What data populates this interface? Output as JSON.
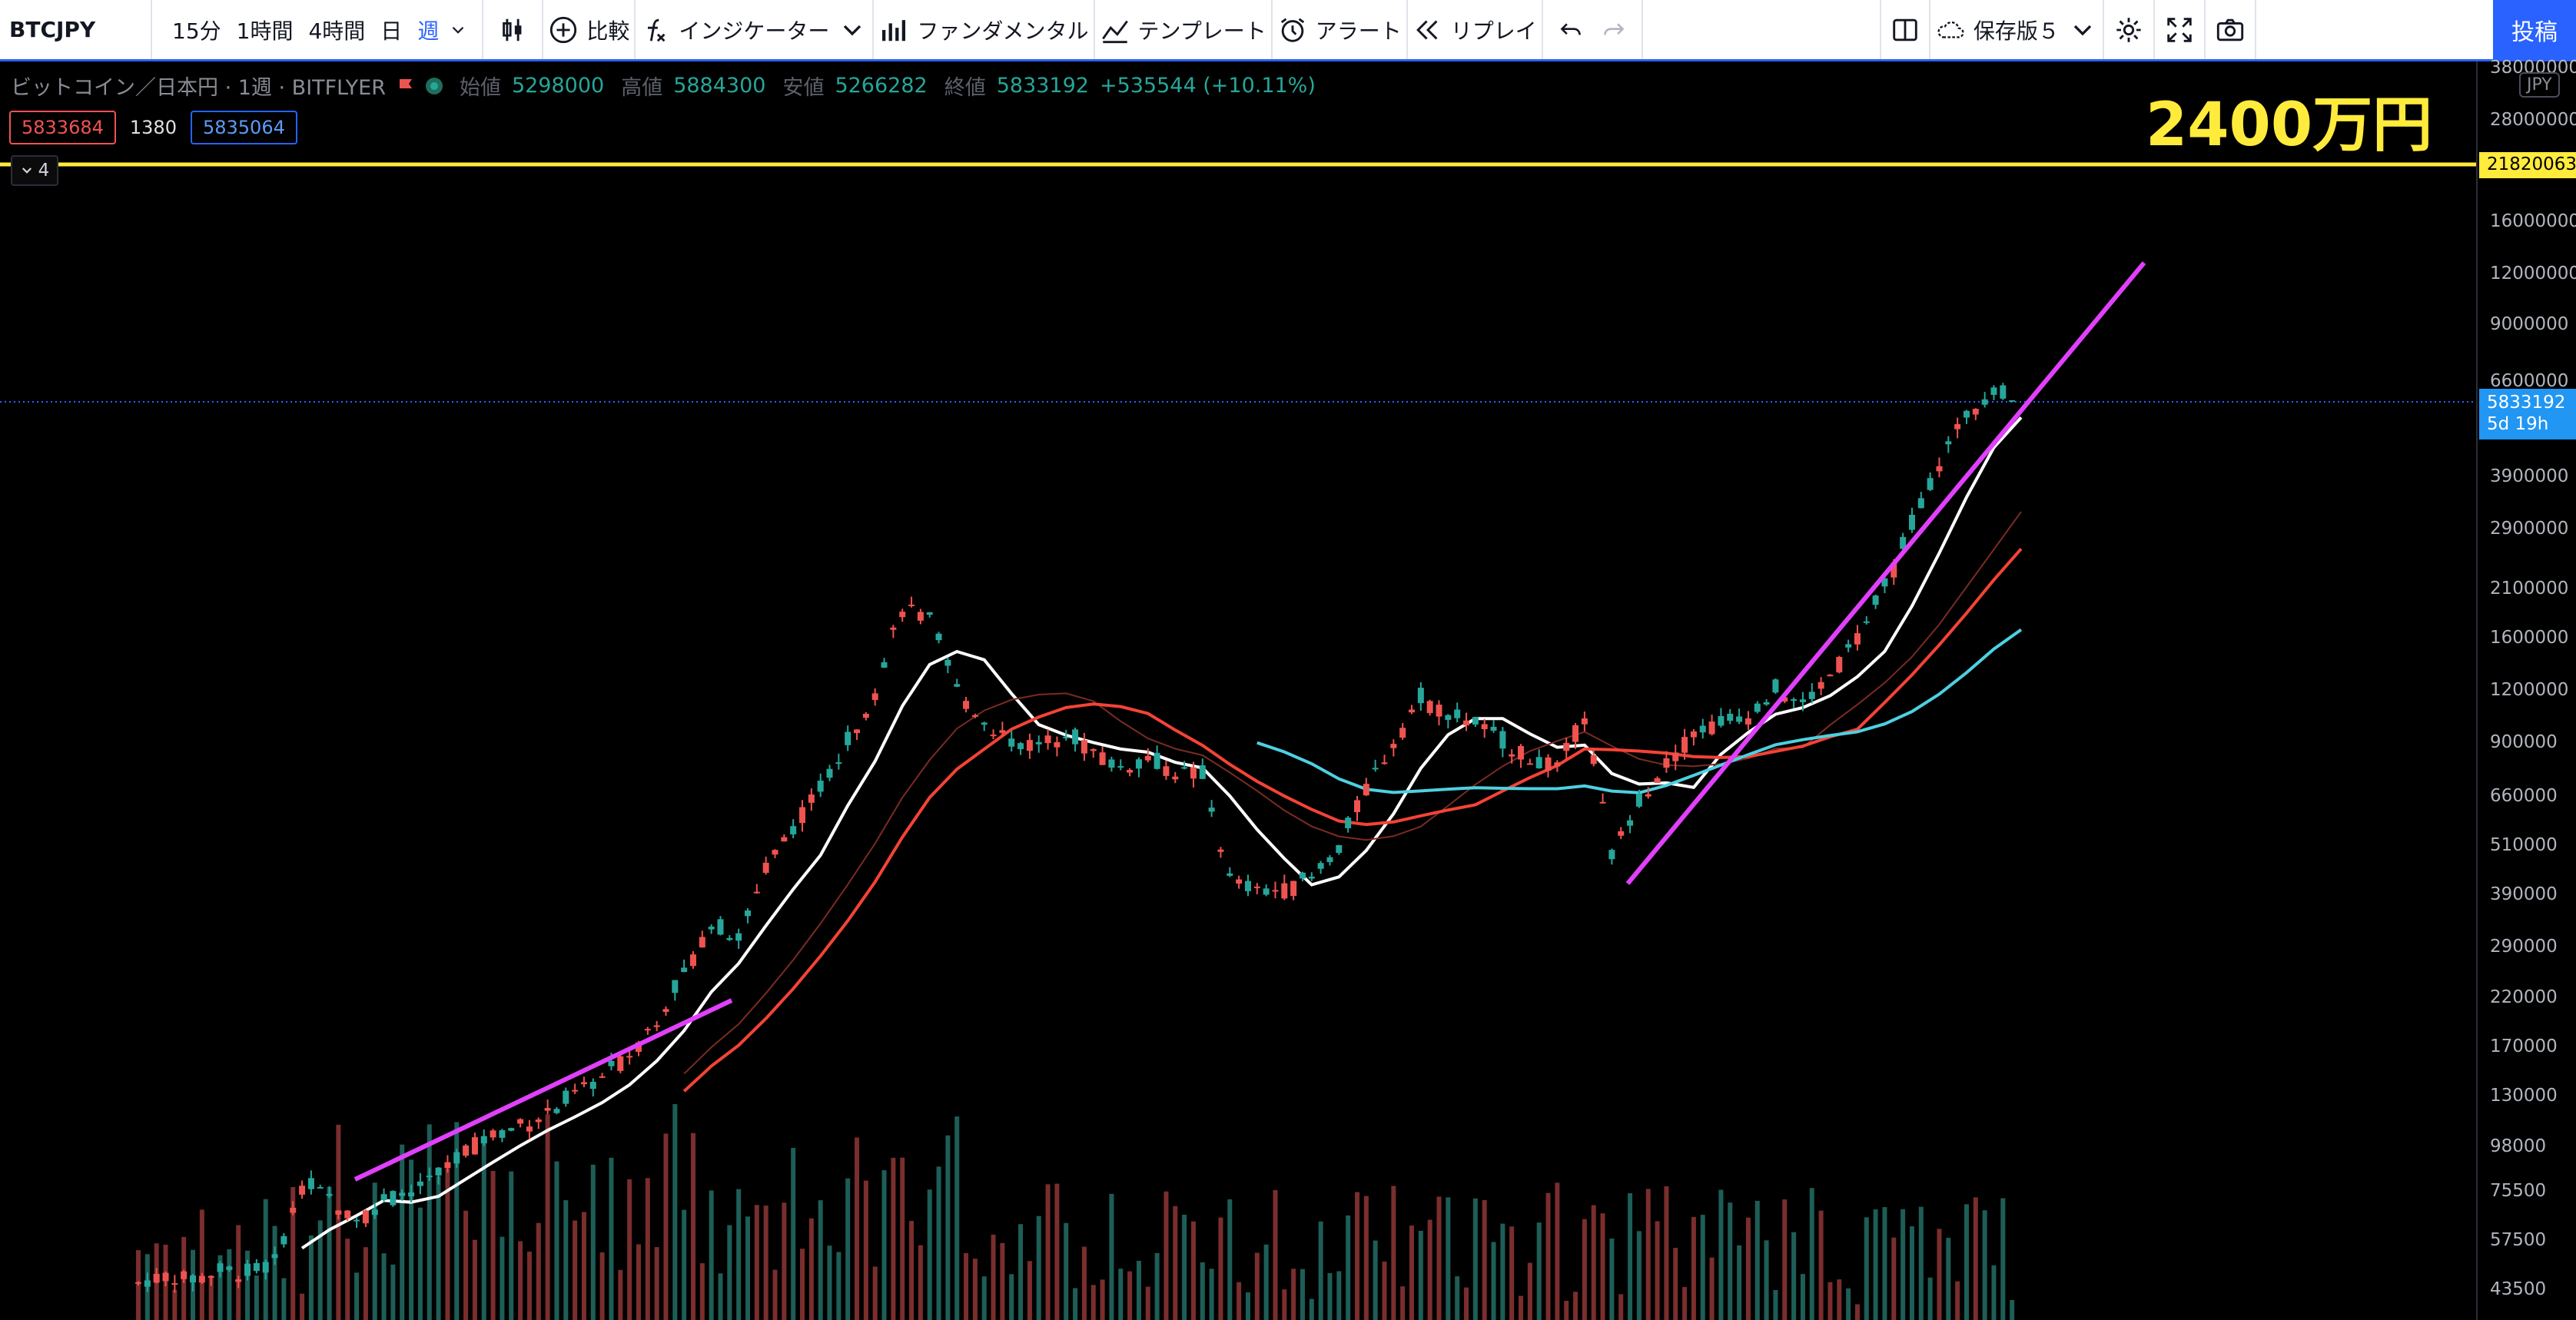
{
  "toolbar": {
    "symbol": "BTCJPY",
    "intervals": [
      "15分",
      "1時間",
      "4時間",
      "日",
      "週"
    ],
    "active_interval": "週",
    "compare_label": "比較",
    "indicators_label": "インジケーター",
    "fundamentals_label": "ファンダメンタル",
    "templates_label": "テンプレート",
    "alert_label": "アラート",
    "replay_label": "リプレイ",
    "layout_label": "保存版５",
    "post_label": "投稿"
  },
  "legend": {
    "title": "ビットコイン／日本円 · 1週 · BITFLYER",
    "open_label": "始値",
    "open": "5298000",
    "high_label": "高値",
    "high": "5884300",
    "low_label": "安値",
    "low": "5266282",
    "close_label": "終値",
    "close": "5833192",
    "change": "+535544 (+10.11%)",
    "ind_value_1": "5833684",
    "volume_value": "1380",
    "ind_value_2": "5835064",
    "collapse_count": "4"
  },
  "annotation": "2400万円",
  "price_scale": {
    "currency": "JPY",
    "ticks": [
      "38000000",
      "28000000",
      "16000000",
      "12000000",
      "9000000",
      "6600000",
      "3900000",
      "2900000",
      "2100000",
      "1600000",
      "1200000",
      "900000",
      "660000",
      "510000",
      "390000",
      "290000",
      "220000",
      "170000",
      "130000",
      "98000",
      "75500",
      "57500",
      "43500"
    ],
    "hline_value": "21820063",
    "last_price": "5833192",
    "countdown": "5d 19h"
  },
  "colors": {
    "up": "#26a69a",
    "down": "#ef5350",
    "trendline": "#e040fb",
    "hline": "#ffeb3b",
    "accent": "#2962ff"
  },
  "chart_data": {
    "type": "candlestick",
    "symbol": "BTCJPY",
    "interval": "1W",
    "scale": "log",
    "close_series": [
      45000,
      47000,
      46000,
      48000,
      47500,
      50000,
      78000,
      72000,
      65000,
      70000,
      75000,
      82000,
      95000,
      102000,
      108000,
      115000,
      128000,
      140000,
      160000,
      195000,
      250000,
      330000,
      300000,
      450000,
      560000,
      700000,
      900000,
      1200000,
      1900000,
      1750000,
      1200000,
      1000000,
      900000,
      880000,
      950000,
      850000,
      780000,
      820000,
      760000,
      750000,
      420000,
      390000,
      400000,
      420000,
      500000,
      700000,
      900000,
      1150000,
      1050000,
      1000000,
      900000,
      820000,
      780000,
      1050000,
      480000,
      650000,
      800000,
      950000,
      1000000,
      1050000,
      1200000,
      1100000,
      1300000,
      1600000,
      2100000,
      3000000,
      4200000,
      5500000,
      6300000,
      5833192
    ],
    "overlays": [
      "trendline 2017",
      "trendline 2020-2021",
      "horizontal line 21820063"
    ]
  }
}
